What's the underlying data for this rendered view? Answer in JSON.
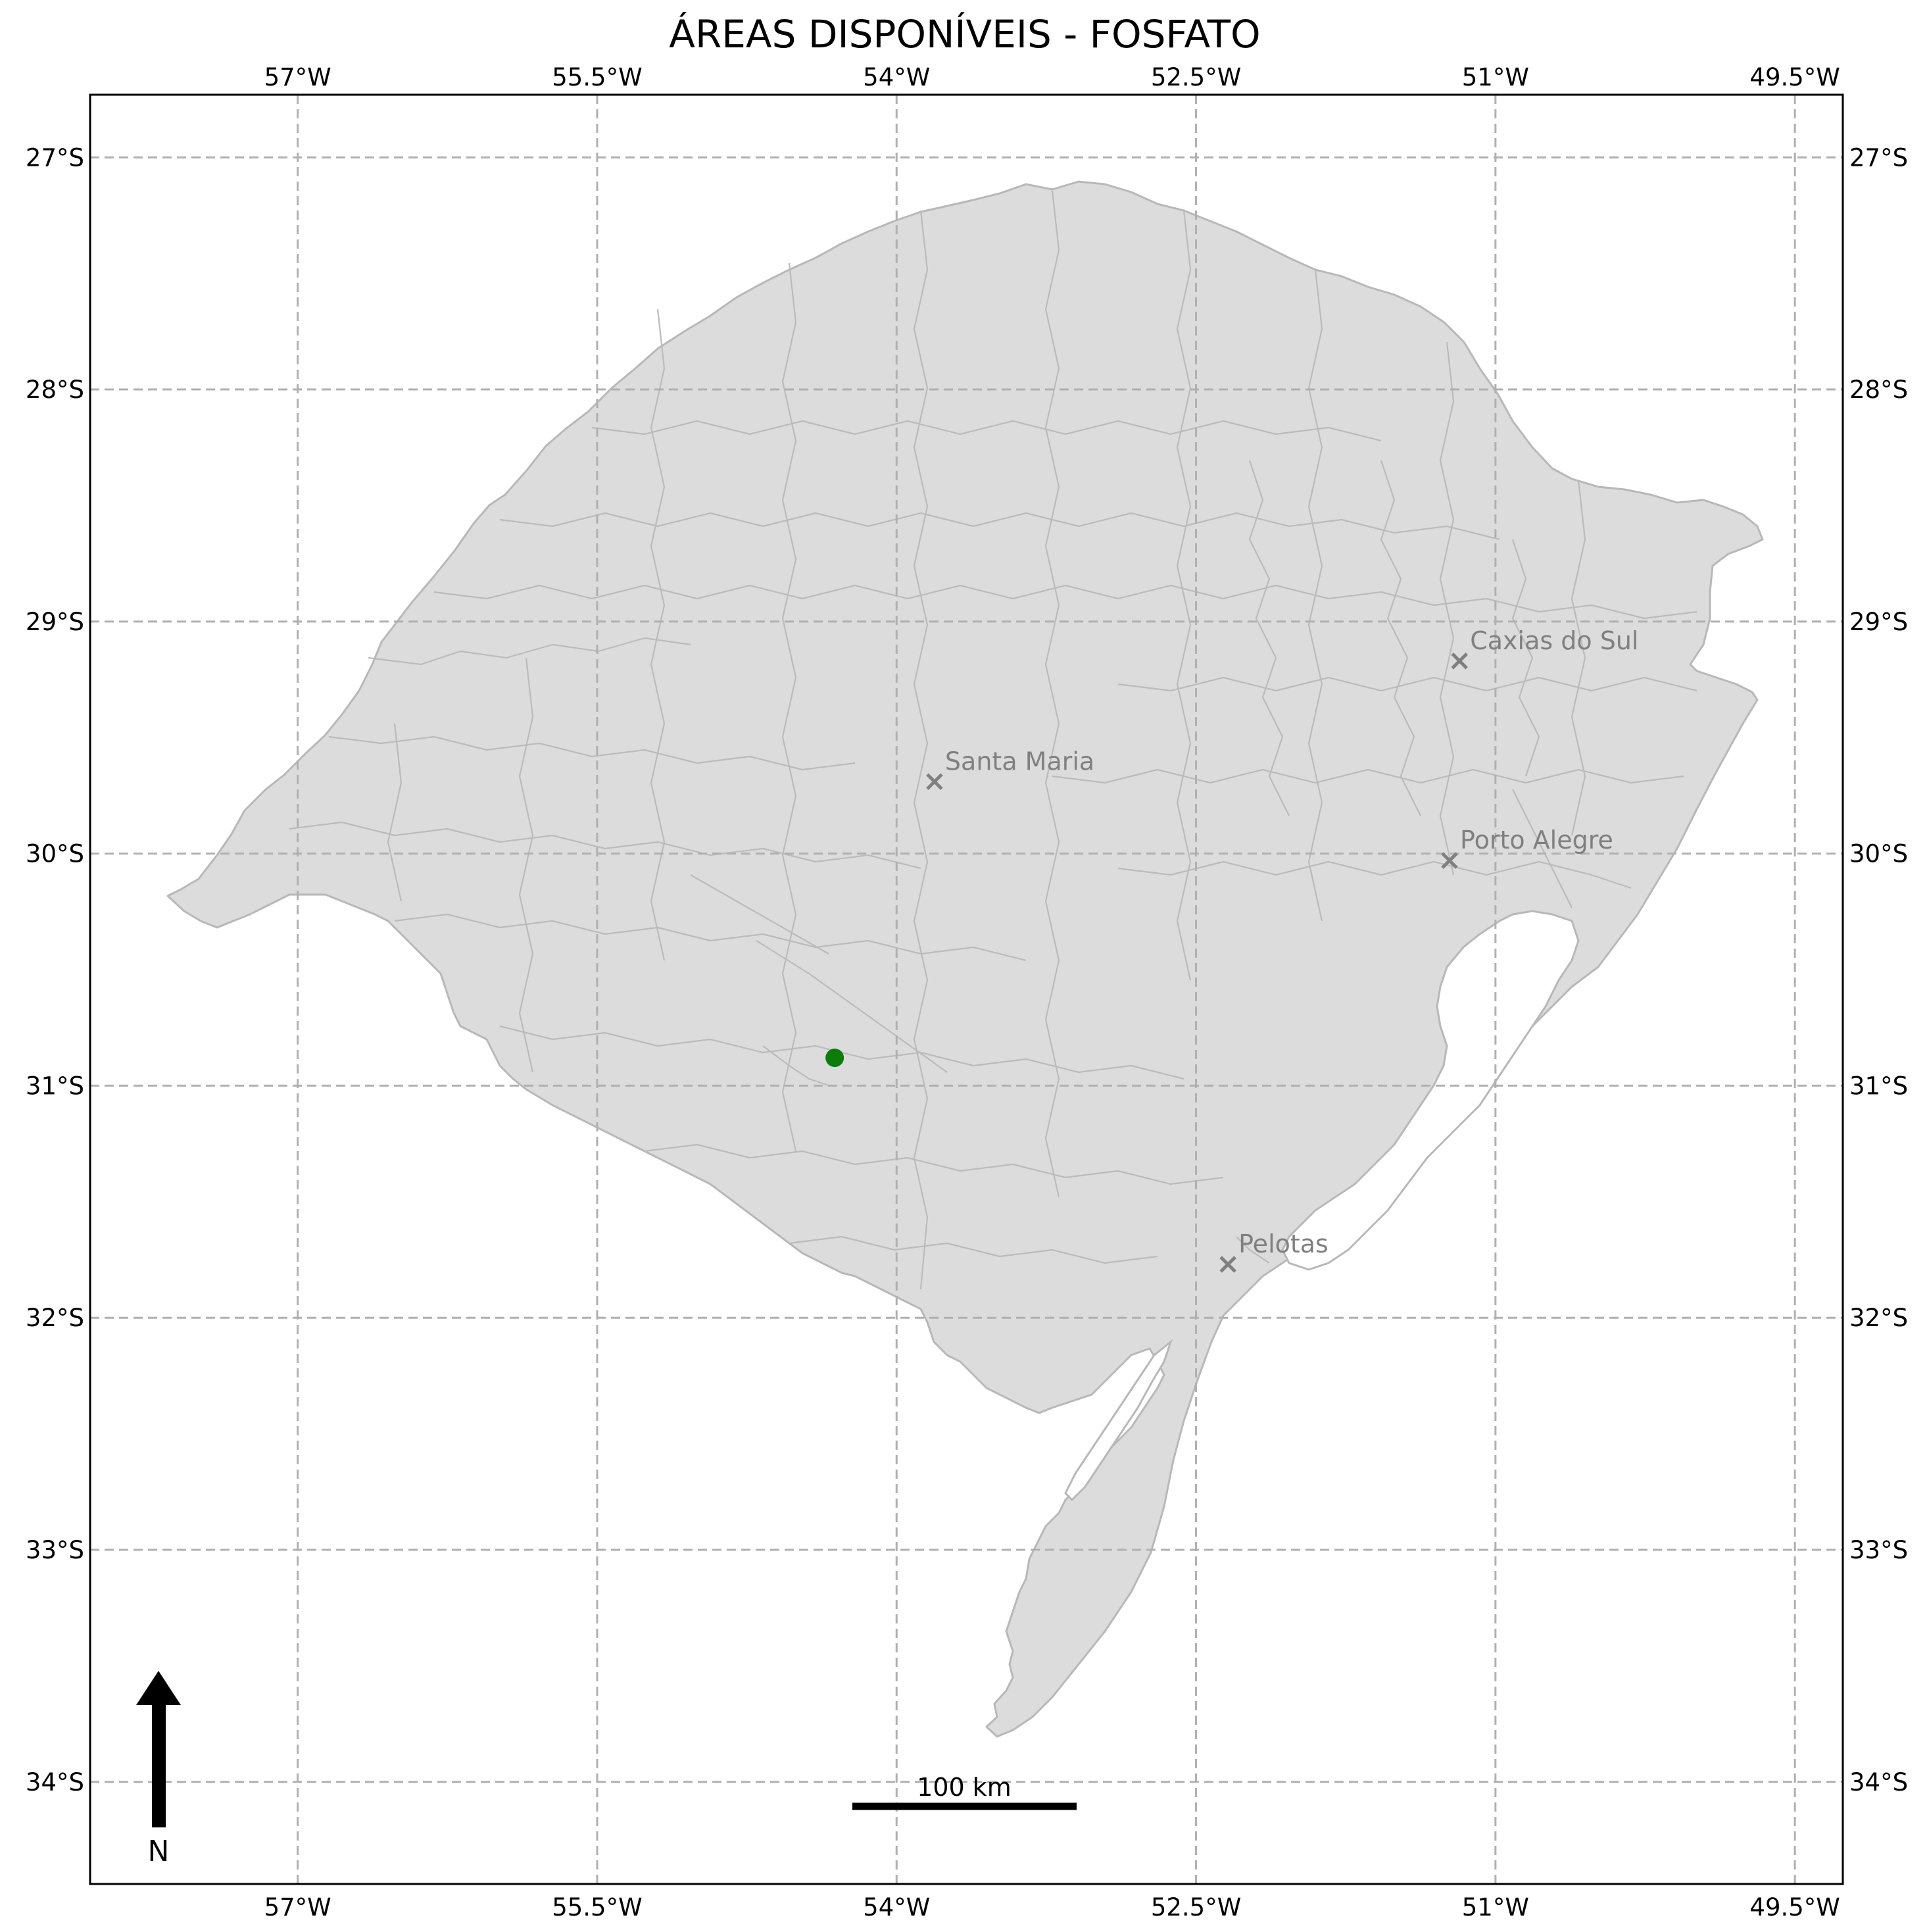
{
  "title": "ÁREAS DISPONÍVEIS - FOSFATO",
  "lon_ticks": [
    {
      "value": -57.0,
      "label": "57°W"
    },
    {
      "value": -55.5,
      "label": "55.5°W"
    },
    {
      "value": -54.0,
      "label": "54°W"
    },
    {
      "value": -52.5,
      "label": "52.5°W"
    },
    {
      "value": -51.0,
      "label": "51°W"
    },
    {
      "value": -49.5,
      "label": "49.5°W"
    }
  ],
  "lat_ticks": [
    {
      "value": -27.0,
      "label": "27°S"
    },
    {
      "value": -28.0,
      "label": "28°S"
    },
    {
      "value": -29.0,
      "label": "29°S"
    },
    {
      "value": -30.0,
      "label": "30°S"
    },
    {
      "value": -31.0,
      "label": "31°S"
    },
    {
      "value": -32.0,
      "label": "32°S"
    },
    {
      "value": -33.0,
      "label": "33°S"
    },
    {
      "value": -34.0,
      "label": "34°S"
    }
  ],
  "extent": {
    "lon_min": -58.04,
    "lon_max": -49.26,
    "lat_min": -34.44,
    "lat_max": -26.73
  },
  "colors": {
    "land": "#dcdcdc",
    "border": "#b8b8b8",
    "grid": "#b0b0b0",
    "city": "#808080",
    "site": "#0a7d0a"
  },
  "cities": [
    {
      "name": "Caxias do Sul",
      "lon": -51.18,
      "lat": -29.17
    },
    {
      "name": "Santa Maria",
      "lon": -53.81,
      "lat": -29.69
    },
    {
      "name": "Porto Alegre",
      "lon": -51.23,
      "lat": -30.03
    },
    {
      "name": "Pelotas",
      "lon": -52.34,
      "lat": -31.77
    }
  ],
  "available_areas": [
    {
      "lon": -54.31,
      "lat": -30.88
    }
  ],
  "scale_bar": {
    "label": "100 km"
  },
  "north_arrow": {
    "label": "N"
  }
}
